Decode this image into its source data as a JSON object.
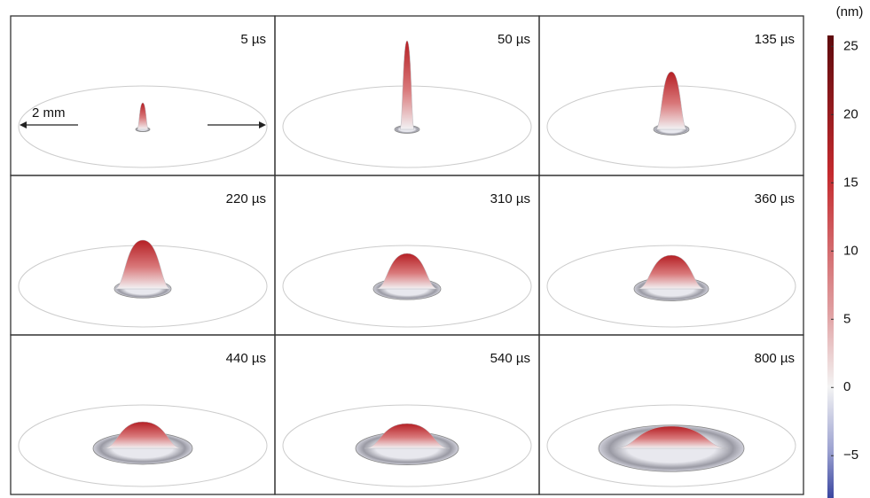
{
  "panels": [
    "5 µs",
    "50 µs",
    "135 µs",
    "220 µs",
    "310 µs",
    "360 µs",
    "440 µs",
    "540 µs",
    "800 µs"
  ],
  "scale_label": "2 mm",
  "colorbar": {
    "unit": "(nm)",
    "lim": [
      -8.1,
      25.8
    ],
    "ticks": [
      25,
      20,
      15,
      10,
      5,
      0,
      {
        "value": -5,
        "label": "−5"
      }
    ]
  }
}
